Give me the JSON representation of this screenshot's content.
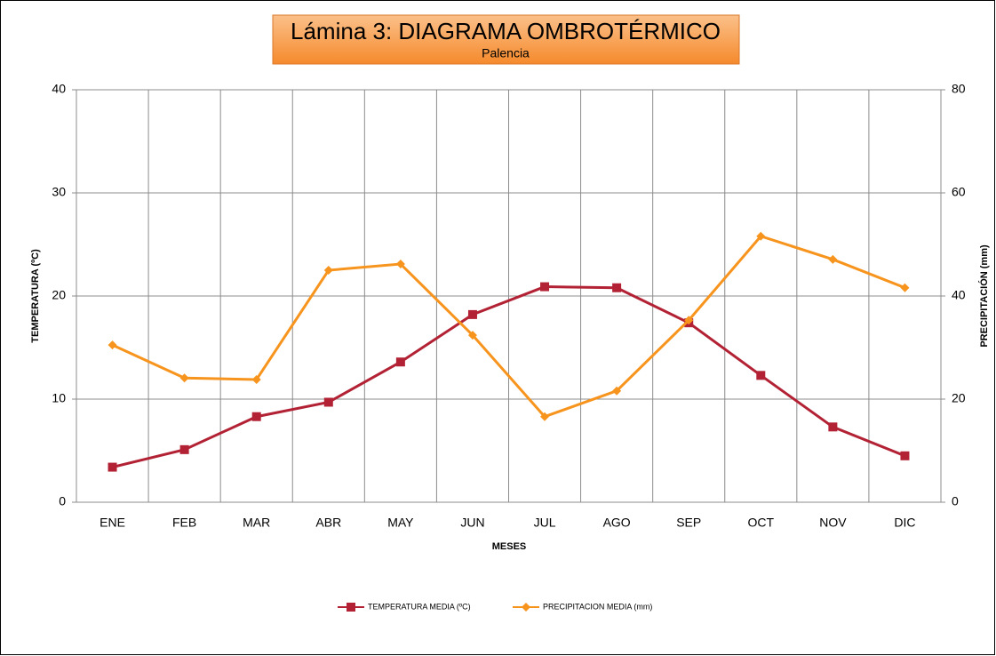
{
  "chart_data": {
    "type": "line",
    "title": "Lámina 3: DIAGRAMA OMBROTÉRMICO",
    "subtitle": "Palencia",
    "x_label": "MESES",
    "y_label": "TEMPERATURA (ºC)",
    "y2_label": "PRECIPITACIÓN (mm)",
    "categories": [
      "ENE",
      "FEB",
      "MAR",
      "ABR",
      "MAY",
      "JUN",
      "JUL",
      "AGO",
      "SEP",
      "OCT",
      "NOV",
      "DIC"
    ],
    "series": [
      {
        "name": "TEMPERATURA MEDIA (ºC)",
        "color": "#b22234",
        "marker": "square",
        "values": [
          3.4,
          5.1,
          8.3,
          9.7,
          13.6,
          18.2,
          20.9,
          20.8,
          17.4,
          12.3,
          7.3,
          4.5
        ]
      },
      {
        "name": "PRECIPITACION MEDIA (mm)",
        "color": "#f7941d",
        "marker": "diamond",
        "axis": "y2",
        "values": [
          30.5,
          24.1,
          23.8,
          45.0,
          46.2,
          32.4,
          16.6,
          21.6,
          35.3,
          51.6,
          47.1,
          41.6
        ]
      }
    ],
    "ylim": [
      0,
      40
    ],
    "yticks": [
      0,
      10,
      20,
      30,
      40
    ],
    "y2lim": [
      0,
      80
    ],
    "y2ticks": [
      0,
      20,
      40,
      60,
      80
    ],
    "grid": true,
    "legend": "bottom"
  }
}
